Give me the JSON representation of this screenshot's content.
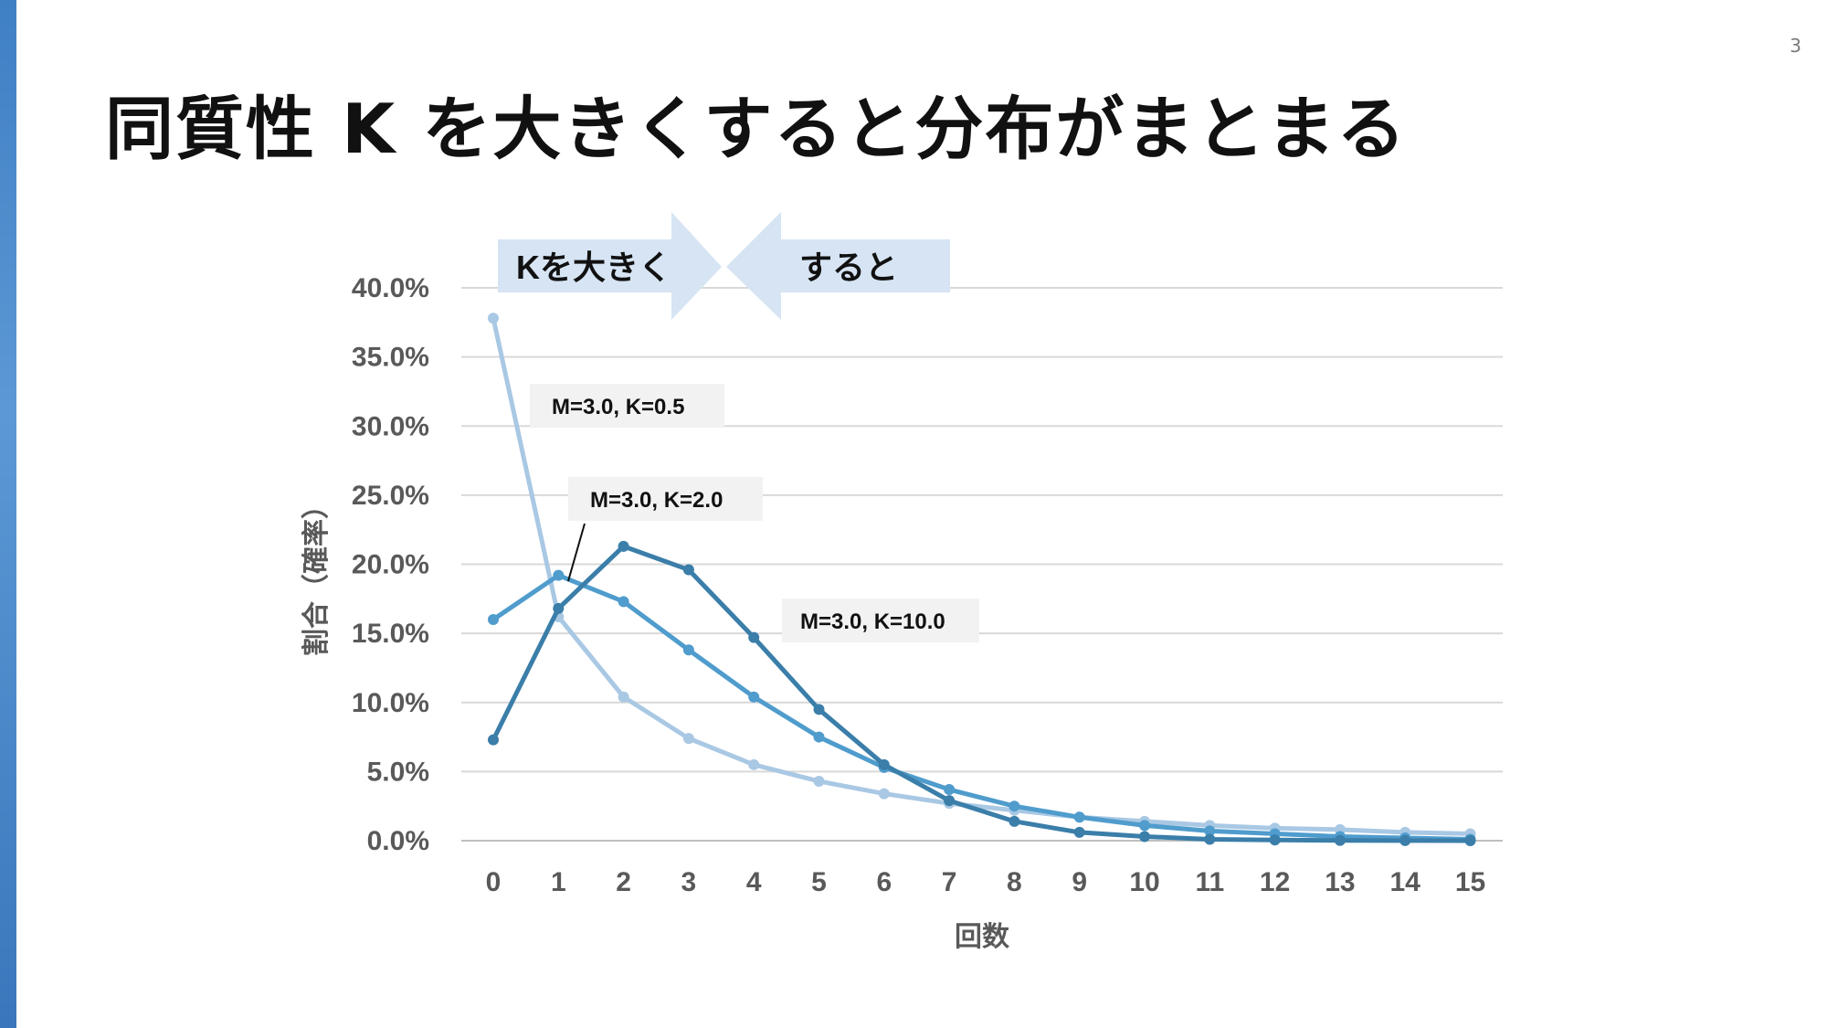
{
  "page": {
    "number": "3"
  },
  "slide": {
    "title": "同質性 K を大きくすると分布がまとまる"
  },
  "banner": {
    "left_label": "Kを大きく",
    "right_label": "すると"
  },
  "colors": {
    "series_k05": "#a9c8e4",
    "series_k2": "#4f9ccd",
    "series_k10": "#3a7ea9",
    "grid": "#d9d9d9",
    "banner_fill": "#d6e4f3",
    "annotation_fill": "#f2f2f2"
  },
  "chart_data": {
    "type": "line",
    "xlabel": "回数",
    "ylabel": "割合（確率）",
    "x": [
      0,
      1,
      2,
      3,
      4,
      5,
      6,
      7,
      8,
      9,
      10,
      11,
      12,
      13,
      14,
      15
    ],
    "x_tick_labels": [
      "0",
      "1",
      "2",
      "3",
      "4",
      "5",
      "6",
      "7",
      "8",
      "9",
      "10",
      "11",
      "12",
      "13",
      "14",
      "15"
    ],
    "ylim": [
      0,
      40
    ],
    "y_ticks": [
      0,
      5,
      10,
      15,
      20,
      25,
      30,
      35,
      40
    ],
    "y_tick_labels": [
      "0.0%",
      "5.0%",
      "10.0%",
      "15.0%",
      "20.0%",
      "25.0%",
      "30.0%",
      "35.0%",
      "40.0%"
    ],
    "grid": true,
    "series": [
      {
        "name": "M=3.0, K=0.5",
        "color_key": "series_k05",
        "values": [
          37.8,
          16.2,
          10.4,
          7.4,
          5.5,
          4.3,
          3.4,
          2.7,
          2.2,
          1.7,
          1.4,
          1.1,
          0.9,
          0.8,
          0.6,
          0.5
        ]
      },
      {
        "name": "M=3.0, K=2.0",
        "color_key": "series_k2",
        "values": [
          16.0,
          19.2,
          17.3,
          13.8,
          10.4,
          7.5,
          5.3,
          3.7,
          2.5,
          1.7,
          1.1,
          0.7,
          0.5,
          0.3,
          0.2,
          0.1
        ]
      },
      {
        "name": "M=3.0, K=10.0",
        "color_key": "series_k10",
        "values": [
          7.3,
          16.8,
          21.3,
          19.6,
          14.7,
          9.5,
          5.5,
          2.9,
          1.4,
          0.6,
          0.3,
          0.1,
          0.05,
          0.02,
          0.01,
          0.0
        ]
      }
    ],
    "annotations": [
      {
        "text": "M=3.0, K=0.5",
        "series": 0
      },
      {
        "text": "M=3.0, K=2.0",
        "series": 1
      },
      {
        "text": "M=3.0, K=10.0",
        "series": 2
      }
    ]
  }
}
